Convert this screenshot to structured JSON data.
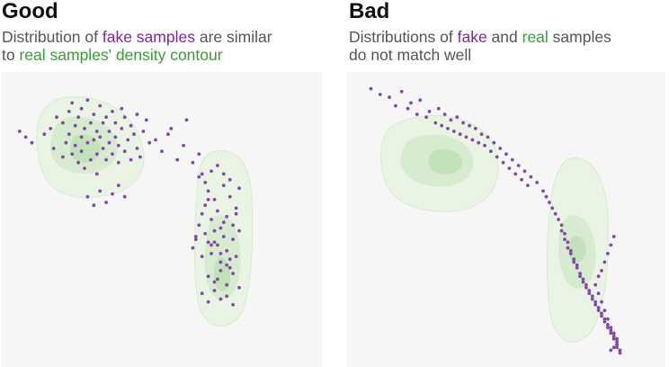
{
  "colors": {
    "fake": "#7b2a9a",
    "real": "#3a9a3a",
    "plot_bg": "#f6f6f6",
    "density_light": "#e9f4e5",
    "density_mid": "#d6ebcf",
    "density_dark": "#c3e1ba",
    "point": "#8249a8"
  },
  "panels": [
    {
      "title": "Good",
      "subtitle": {
        "line1_pre": "Distribution of ",
        "line1_fake": "fake samples",
        "line1_post": " are similar",
        "line2_pre": "to ",
        "line2_real": "real samples' density contour"
      }
    },
    {
      "title": "Bad",
      "subtitle": {
        "line1_pre": "Distributions of ",
        "line1_fake": "fake",
        "line1_mid": " and ",
        "line1_real": "real",
        "line1_post": " samples",
        "line2": "do not match well"
      }
    }
  ],
  "chart_data": [
    {
      "type": "scatter",
      "title": "Good",
      "xlim": [
        0,
        100
      ],
      "ylim": [
        0,
        100
      ],
      "grid": false,
      "series": [
        {
          "name": "fake samples",
          "x": [
            6,
            4,
            8,
            12,
            14,
            15,
            16,
            18,
            18,
            19,
            20,
            20,
            21,
            21,
            22,
            22,
            23,
            23,
            24,
            24,
            24,
            25,
            25,
            26,
            26,
            27,
            27,
            28,
            28,
            29,
            29,
            29,
            30,
            30,
            31,
            31,
            32,
            32,
            33,
            33,
            34,
            34,
            35,
            35,
            36,
            36,
            37,
            37,
            38,
            38,
            39,
            40,
            40,
            41,
            42,
            42,
            43,
            44,
            45,
            46,
            48,
            50,
            52,
            53,
            55,
            57,
            58,
            60,
            62,
            63,
            26,
            28,
            30,
            32,
            34,
            36,
            38,
            60,
            61,
            62,
            63,
            63,
            64,
            64,
            65,
            65,
            66,
            66,
            67,
            67,
            68,
            68,
            69,
            69,
            70,
            70,
            71,
            71,
            72,
            72,
            73,
            73,
            74,
            74,
            75,
            75,
            62,
            64,
            66,
            68,
            70,
            72,
            65,
            67,
            69,
            71,
            73,
            75,
            63,
            65,
            67,
            69,
            71,
            61,
            66,
            70,
            72,
            74,
            65,
            68,
            71,
            73,
            67,
            69
          ],
          "y": [
            79,
            81,
            77,
            80,
            82,
            75,
            86,
            72,
            84,
            77,
            80,
            88,
            73,
            91,
            76,
            83,
            70,
            86,
            79,
            74,
            89,
            82,
            68,
            77,
            92,
            71,
            84,
            78,
            87,
            73,
            81,
            66,
            79,
            90,
            75,
            84,
            71,
            86,
            77,
            81,
            73,
            88,
            79,
            84,
            70,
            76,
            82,
            89,
            74,
            86,
            78,
            83,
            71,
            80,
            75,
            87,
            72,
            81,
            85,
            77,
            78,
            74,
            80,
            82,
            71,
            76,
            85,
            70,
            73,
            66,
            58,
            55,
            60,
            56,
            59,
            62,
            58,
            40,
            43,
            48,
            52,
            37,
            45,
            55,
            42,
            60,
            38,
            50,
            46,
            57,
            41,
            53,
            35,
            47,
            62,
            44,
            39,
            51,
            58,
            33,
            48,
            43,
            54,
            37,
            61,
            46,
            65,
            63,
            67,
            69,
            66,
            64,
            30,
            28,
            32,
            27,
            31,
            26,
            24,
            21,
            25,
            22,
            23,
            44,
            41,
            49,
            36,
            52,
            57,
            29,
            34,
            20,
            42,
            38
          ]
        }
      ]
    },
    {
      "type": "scatter",
      "title": "Bad",
      "xlim": [
        0,
        100
      ],
      "ylim": [
        0,
        100
      ],
      "grid": false,
      "series": [
        {
          "name": "fake",
          "x": [
            6,
            9,
            12,
            14,
            16,
            18,
            19,
            21,
            22,
            24,
            25,
            27,
            28,
            29,
            30,
            31,
            32,
            33,
            34,
            35,
            36,
            37,
            38,
            39,
            40,
            41,
            42,
            43,
            44,
            45,
            46,
            47,
            48,
            49,
            50,
            51,
            52,
            53,
            54,
            55,
            56,
            57,
            58,
            60,
            62,
            63,
            64,
            65,
            66,
            67,
            68,
            68,
            69,
            69,
            70,
            70,
            71,
            71,
            72,
            72,
            73,
            73,
            74,
            74,
            75,
            75,
            76,
            76,
            77,
            77,
            78,
            78,
            79,
            79,
            80,
            80,
            81,
            81,
            82,
            82,
            83,
            83,
            84,
            84,
            85,
            85,
            86,
            86,
            86,
            87,
            87,
            85,
            84,
            83,
            82,
            81,
            80,
            79,
            80,
            81,
            82,
            83,
            84,
            85,
            86,
            86,
            85,
            84
          ],
          "y": [
            96,
            94,
            93,
            90,
            95,
            89,
            91,
            87,
            92,
            86,
            88,
            84,
            89,
            83,
            87,
            82,
            85,
            81,
            86,
            80,
            84,
            79,
            83,
            78,
            82,
            77,
            80,
            76,
            79,
            74,
            77,
            72,
            75,
            70,
            73,
            68,
            71,
            66,
            69,
            64,
            67,
            62,
            65,
            63,
            60,
            58,
            56,
            54,
            52,
            50,
            48,
            46,
            45,
            43,
            42,
            40,
            39,
            38,
            36,
            35,
            34,
            33,
            31,
            30,
            29,
            28,
            27,
            26,
            25,
            24,
            23,
            22,
            21,
            20,
            19,
            18,
            17,
            16,
            15,
            14,
            13,
            12,
            11,
            10,
            9,
            8,
            7,
            6,
            5,
            4,
            3,
            44,
            41,
            38,
            35,
            32,
            30,
            27,
            24,
            21,
            18,
            15,
            12,
            10,
            8,
            6,
            5,
            4
          ]
        }
      ]
    }
  ]
}
